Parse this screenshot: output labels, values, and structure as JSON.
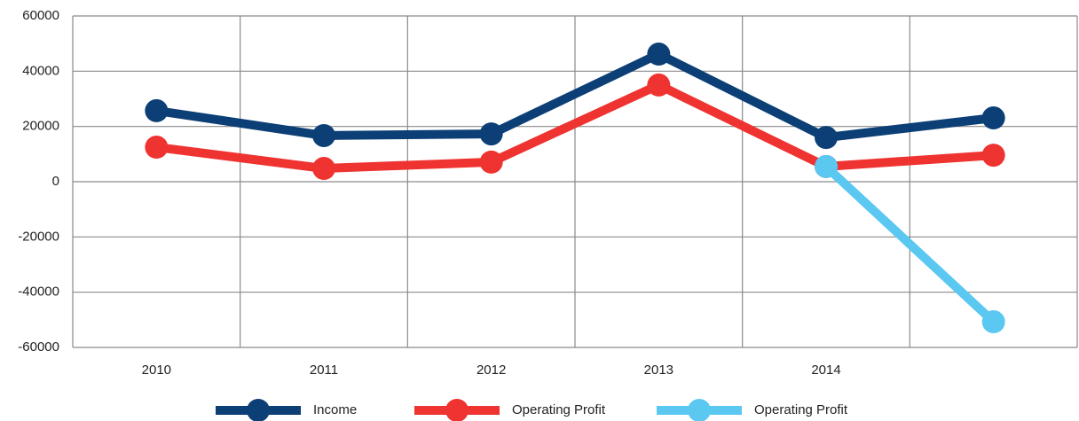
{
  "chart_data": {
    "type": "line",
    "categories": [
      "2010",
      "2011",
      "2012",
      "2013",
      "2014",
      null
    ],
    "series": [
      {
        "name": "Income",
        "color": "#0c3f75",
        "values": [
          25700,
          16700,
          17300,
          46200,
          16000,
          23100
        ]
      },
      {
        "name": "Operating Profit",
        "color": "#ee3330",
        "values": [
          12500,
          4800,
          7100,
          35000,
          5500,
          9600
        ]
      },
      {
        "name": "Operating Profit",
        "color": "#5bc8f2",
        "values": [
          null,
          null,
          null,
          null,
          5500,
          -50700
        ]
      }
    ],
    "ylim": [
      -60000,
      60000
    ],
    "yticks": [
      -60000,
      -40000,
      -20000,
      0,
      20000,
      40000,
      60000
    ],
    "grid": true
  }
}
